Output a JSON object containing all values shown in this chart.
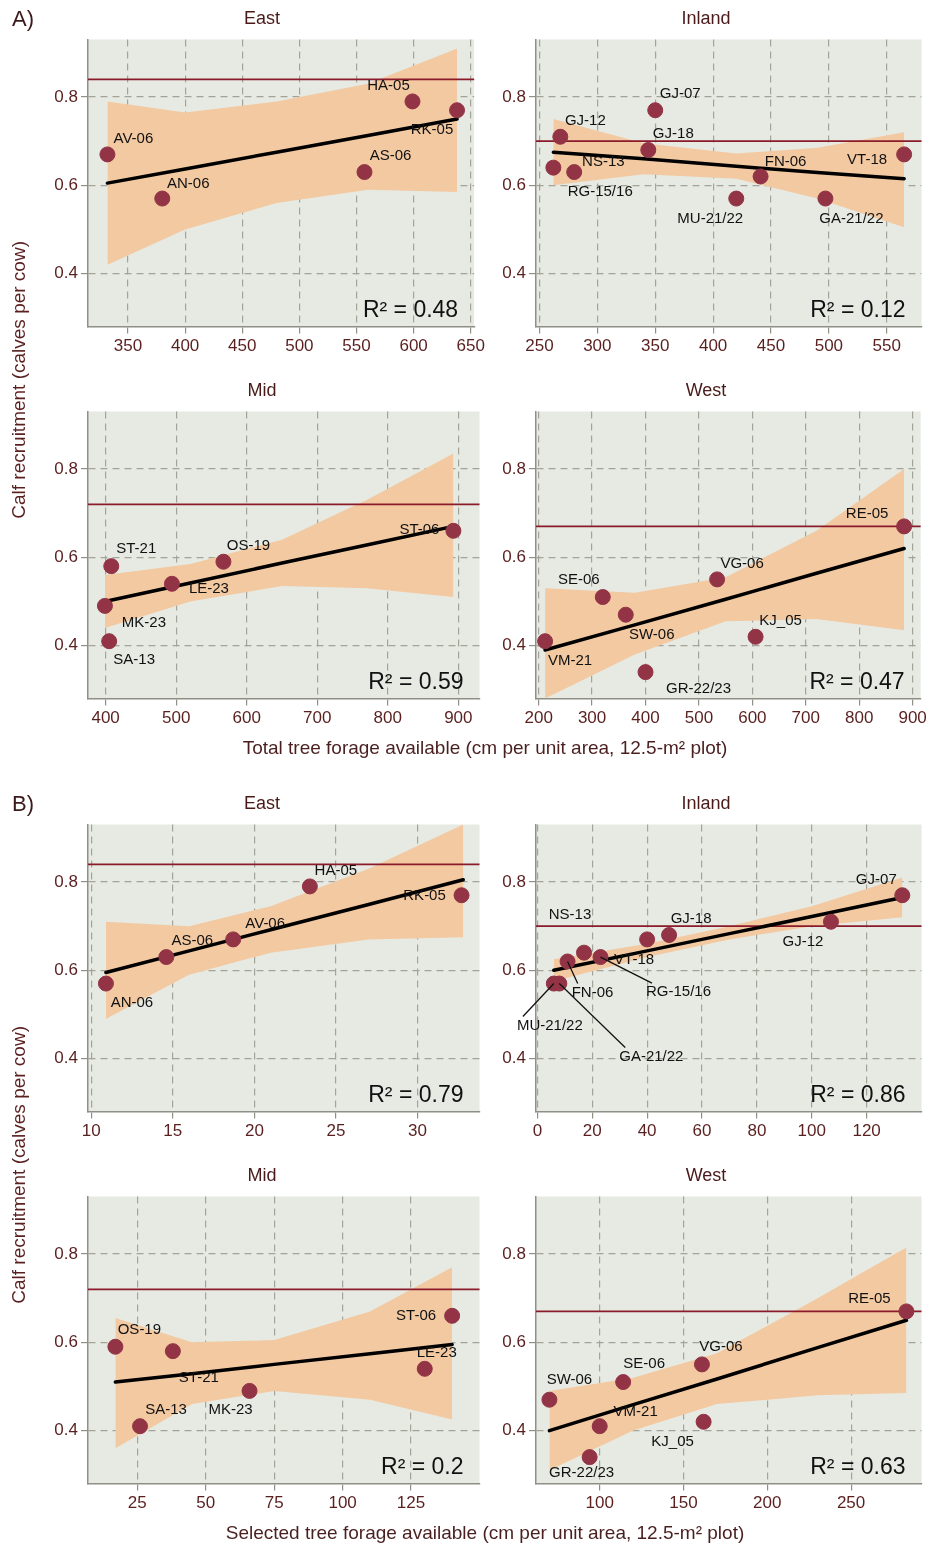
{
  "chart_data": [
    {
      "type": "scatter",
      "title": "East",
      "ylabel": "Calf recruitment (calves per cow)",
      "xlim": [
        315,
        653
      ],
      "xticks": [
        350,
        400,
        450,
        500,
        550,
        600,
        650
      ],
      "ylim": [
        0.28,
        0.93
      ],
      "yticks": [
        0.4,
        0.6,
        0.8
      ],
      "grid": true,
      "marker": "circle",
      "ref_lines": [
        {
          "axis": "y",
          "value": 0.84,
          "color": "#8b1a2b"
        }
      ],
      "series": [
        {
          "type": "scatter",
          "color": "#923446",
          "x": [
            332,
            380,
            557,
            599,
            638
          ],
          "values": [
            0.67,
            0.57,
            0.63,
            0.79,
            0.77
          ]
        },
        {
          "type": "line",
          "color": "#000000",
          "marker": "none",
          "x": [
            332,
            400,
            480,
            560,
            638
          ],
          "values": [
            0.605,
            0.637,
            0.675,
            0.713,
            0.75
          ],
          "lower": [
            0.42,
            0.5,
            0.56,
            0.59,
            0.585
          ],
          "upper": [
            0.79,
            0.765,
            0.79,
            0.83,
            0.91
          ]
        }
      ],
      "annotations": [
        "A)",
        "R² = 0.48",
        {
          "text": "AV-06",
          "x": 332,
          "y": 0.67
        },
        {
          "text": "AN-06",
          "x": 380,
          "y": 0.57
        },
        {
          "text": "AS-06",
          "x": 557,
          "y": 0.63
        },
        {
          "text": "HA-05",
          "x": 599,
          "y": 0.79
        },
        {
          "text": "RK-05",
          "x": 638,
          "y": 0.77
        }
      ]
    },
    {
      "type": "scatter",
      "title": "Inland",
      "xlim": [
        247,
        580
      ],
      "xticks": [
        250,
        300,
        350,
        400,
        450,
        500,
        550
      ],
      "ylim": [
        0.28,
        0.93
      ],
      "yticks": [
        0.4,
        0.6,
        0.8
      ],
      "grid": true,
      "marker": "circle",
      "ref_lines": [
        {
          "axis": "y",
          "value": 0.7,
          "color": "#8b1a2b"
        }
      ],
      "series": [
        {
          "type": "scatter",
          "color": "#923446",
          "x": [
            268,
            262,
            280,
            344,
            350,
            420,
            441,
            497,
            565
          ],
          "values": [
            0.71,
            0.64,
            0.63,
            0.68,
            0.77,
            0.57,
            0.62,
            0.57,
            0.67
          ]
        },
        {
          "type": "line",
          "color": "#000000",
          "marker": "none",
          "x": [
            262,
            340,
            420,
            490,
            565
          ],
          "values": [
            0.675,
            0.66,
            0.643,
            0.629,
            0.615
          ],
          "lower": [
            0.6,
            0.625,
            0.615,
            0.57,
            0.505
          ],
          "upper": [
            0.75,
            0.695,
            0.672,
            0.685,
            0.72
          ]
        }
      ],
      "annotations": [
        "R² = 0.12",
        {
          "text": "GJ-12",
          "x": 268,
          "y": 0.71
        },
        {
          "text": "NS-13",
          "x": 262,
          "y": 0.64
        },
        {
          "text": "RG-15/16",
          "x": 280,
          "y": 0.63
        },
        {
          "text": "GJ-18",
          "x": 344,
          "y": 0.68
        },
        {
          "text": "GJ-07",
          "x": 350,
          "y": 0.77
        },
        {
          "text": "MU-21/22",
          "x": 420,
          "y": 0.57
        },
        {
          "text": "FN-06",
          "x": 441,
          "y": 0.62
        },
        {
          "text": "GA-21/22",
          "x": 497,
          "y": 0.57
        },
        {
          "text": "VT-18",
          "x": 565,
          "y": 0.67
        }
      ]
    },
    {
      "type": "scatter",
      "title": "Mid",
      "xlabel": "Total tree forage available (cm per unit area, 12.5-m² plot)",
      "xlim": [
        375,
        930
      ],
      "xticks": [
        400,
        500,
        600,
        700,
        800,
        900
      ],
      "ylim": [
        0.28,
        0.93
      ],
      "yticks": [
        0.4,
        0.6,
        0.8
      ],
      "grid": true,
      "marker": "circle",
      "ref_lines": [
        {
          "axis": "y",
          "value": 0.72,
          "color": "#8b1a2b"
        }
      ],
      "series": [
        {
          "type": "scatter",
          "color": "#923446",
          "x": [
            399,
            405,
            408,
            494,
            567,
            893
          ],
          "values": [
            0.49,
            0.41,
            0.58,
            0.54,
            0.59,
            0.66
          ]
        },
        {
          "type": "line",
          "color": "#000000",
          "marker": "none",
          "x": [
            399,
            520,
            650,
            770,
            893
          ],
          "values": [
            0.5,
            0.542,
            0.587,
            0.628,
            0.67
          ],
          "lower": [
            0.44,
            0.5,
            0.535,
            0.53,
            0.51
          ],
          "upper": [
            0.56,
            0.585,
            0.64,
            0.73,
            0.835
          ]
        }
      ],
      "annotations": [
        "R² = 0.59",
        {
          "text": "MK-23",
          "x": 399,
          "y": 0.49
        },
        {
          "text": "SA-13",
          "x": 405,
          "y": 0.41
        },
        {
          "text": "ST-21",
          "x": 408,
          "y": 0.58
        },
        {
          "text": "LE-23",
          "x": 494,
          "y": 0.54
        },
        {
          "text": "OS-19",
          "x": 567,
          "y": 0.59
        },
        {
          "text": "ST-06",
          "x": 893,
          "y": 0.66
        }
      ]
    },
    {
      "type": "scatter",
      "title": "West",
      "xlim": [
        195,
        915
      ],
      "xticks": [
        200,
        300,
        400,
        500,
        600,
        700,
        800,
        900
      ],
      "ylim": [
        0.28,
        0.93
      ],
      "yticks": [
        0.4,
        0.6,
        0.8
      ],
      "grid": true,
      "marker": "circle",
      "ref_lines": [
        {
          "axis": "y",
          "value": 0.67,
          "color": "#8b1a2b"
        }
      ],
      "series": [
        {
          "type": "scatter",
          "color": "#923446",
          "x": [
            212,
            320,
            363,
            400,
            534,
            606,
            884
          ],
          "values": [
            0.41,
            0.51,
            0.47,
            0.34,
            0.55,
            0.42,
            0.67
          ]
        },
        {
          "type": "line",
          "color": "#000000",
          "marker": "none",
          "x": [
            212,
            380,
            550,
            720,
            884
          ],
          "values": [
            0.39,
            0.447,
            0.505,
            0.564,
            0.62
          ],
          "lower": [
            0.28,
            0.38,
            0.455,
            0.46,
            0.435
          ],
          "upper": [
            0.53,
            0.52,
            0.555,
            0.66,
            0.8
          ]
        }
      ],
      "annotations": [
        "R² = 0.47",
        {
          "text": "VM-21",
          "x": 212,
          "y": 0.41
        },
        {
          "text": "SE-06",
          "x": 320,
          "y": 0.51
        },
        {
          "text": "SW-06",
          "x": 363,
          "y": 0.47
        },
        {
          "text": "GR-22/23",
          "x": 400,
          "y": 0.34
        },
        {
          "text": "VG-06",
          "x": 534,
          "y": 0.55
        },
        {
          "text": "KJ_05",
          "x": 606,
          "y": 0.42
        },
        {
          "text": "RE-05",
          "x": 884,
          "y": 0.67
        }
      ]
    },
    {
      "type": "scatter",
      "title": "East",
      "ylabel": "Calf recruitment (calves per cow)",
      "xlim": [
        9.8,
        33.8
      ],
      "xticks": [
        10,
        15,
        20,
        25,
        30
      ],
      "ylim": [
        0.28,
        0.93
      ],
      "yticks": [
        0.4,
        0.6,
        0.8
      ],
      "grid": true,
      "marker": "circle",
      "ref_lines": [
        {
          "axis": "y",
          "value": 0.84,
          "color": "#8b1a2b"
        }
      ],
      "series": [
        {
          "type": "scatter",
          "color": "#923446",
          "x": [
            10.9,
            14.6,
            18.7,
            23.4,
            32.7
          ],
          "values": [
            0.57,
            0.63,
            0.67,
            0.79,
            0.77
          ]
        },
        {
          "type": "line",
          "color": "#000000",
          "marker": "none",
          "x": [
            10.9,
            16,
            21,
            27,
            32.8
          ],
          "values": [
            0.595,
            0.644,
            0.692,
            0.749,
            0.805
          ],
          "lower": [
            0.49,
            0.59,
            0.64,
            0.67,
            0.675
          ],
          "upper": [
            0.71,
            0.7,
            0.745,
            0.83,
            0.93
          ]
        }
      ],
      "annotations": [
        "B)",
        "R² = 0.79",
        {
          "text": "AN-06",
          "x": 10.9,
          "y": 0.57
        },
        {
          "text": "AS-06",
          "x": 14.6,
          "y": 0.63
        },
        {
          "text": "AV-06",
          "x": 18.7,
          "y": 0.67
        },
        {
          "text": "HA-05",
          "x": 23.4,
          "y": 0.79
        },
        {
          "text": "RK-05",
          "x": 32.7,
          "y": 0.77
        }
      ]
    },
    {
      "type": "scatter",
      "title": "Inland",
      "xlim": [
        -0.5,
        140
      ],
      "xticks": [
        0,
        20,
        40,
        60,
        80,
        100,
        120
      ],
      "ylim": [
        0.28,
        0.93
      ],
      "yticks": [
        0.4,
        0.6,
        0.8
      ],
      "grid": true,
      "marker": "circle",
      "ref_lines": [
        {
          "axis": "y",
          "value": 0.7,
          "color": "#8b1a2b"
        }
      ],
      "series": [
        {
          "type": "scatter",
          "color": "#923446",
          "x": [
            6,
            8,
            11,
            17,
            40,
            23,
            48,
            107,
            133
          ],
          "values": [
            0.57,
            0.57,
            0.62,
            0.64,
            0.67,
            0.63,
            0.68,
            0.71,
            0.77
          ]
        },
        {
          "type": "line",
          "color": "#000000",
          "marker": "none",
          "x": [
            6,
            40,
            70,
            100,
            133
          ],
          "values": [
            0.6,
            0.644,
            0.683,
            0.722,
            0.765
          ],
          "lower": [
            0.575,
            0.63,
            0.67,
            0.7,
            0.72
          ],
          "upper": [
            0.625,
            0.66,
            0.7,
            0.745,
            0.81
          ]
        }
      ],
      "annotations": [
        "R² = 0.86",
        {
          "text": "MU-21/22",
          "x": 6,
          "y": 0.57
        },
        {
          "text": "GA-21/22",
          "x": 8,
          "y": 0.57
        },
        {
          "text": "FN-06",
          "x": 11,
          "y": 0.62
        },
        {
          "text": "NS-13",
          "x": 17,
          "y": 0.64
        },
        {
          "text": "VT-18",
          "x": 40,
          "y": 0.67
        },
        {
          "text": "RG-15/16",
          "x": 23,
          "y": 0.63
        },
        {
          "text": "GJ-18",
          "x": 48,
          "y": 0.68
        },
        {
          "text": "GJ-12",
          "x": 107,
          "y": 0.71
        },
        {
          "text": "GJ-07",
          "x": 133,
          "y": 0.77
        }
      ]
    },
    {
      "type": "scatter",
      "title": "Mid",
      "xlabel": "Selected tree forage available (cm per unit area, 12.5-m² plot)",
      "xlim": [
        7,
        150
      ],
      "xticks": [
        25,
        50,
        75,
        100,
        125
      ],
      "ylim": [
        0.28,
        0.93
      ],
      "yticks": [
        0.4,
        0.6,
        0.8
      ],
      "grid": true,
      "marker": "circle",
      "ref_lines": [
        {
          "axis": "y",
          "value": 0.72,
          "color": "#8b1a2b"
        }
      ],
      "series": [
        {
          "type": "scatter",
          "color": "#923446",
          "x": [
            17,
            26,
            38,
            66,
            130,
            140
          ],
          "values": [
            0.59,
            0.41,
            0.58,
            0.49,
            0.54,
            0.66
          ]
        },
        {
          "type": "line",
          "color": "#000000",
          "marker": "none",
          "x": [
            17,
            45,
            75,
            110,
            140
          ],
          "values": [
            0.51,
            0.529,
            0.55,
            0.574,
            0.595
          ],
          "lower": [
            0.36,
            0.46,
            0.49,
            0.47,
            0.425
          ],
          "upper": [
            0.655,
            0.6,
            0.605,
            0.67,
            0.77
          ]
        }
      ],
      "annotations": [
        "R² = 0.2",
        {
          "text": "OS-19",
          "x": 17,
          "y": 0.59
        },
        {
          "text": "SA-13",
          "x": 26,
          "y": 0.41
        },
        {
          "text": "ST-21",
          "x": 38,
          "y": 0.58
        },
        {
          "text": "MK-23",
          "x": 66,
          "y": 0.49
        },
        {
          "text": "LE-23",
          "x": 130,
          "y": 0.54
        },
        {
          "text": "ST-06",
          "x": 140,
          "y": 0.66
        }
      ]
    },
    {
      "type": "scatter",
      "title": "West",
      "xlim": [
        62,
        292
      ],
      "xticks": [
        100,
        150,
        200,
        250
      ],
      "ylim": [
        0.28,
        0.93
      ],
      "yticks": [
        0.4,
        0.6,
        0.8
      ],
      "grid": true,
      "marker": "circle",
      "ref_lines": [
        {
          "axis": "y",
          "value": 0.67,
          "color": "#8b1a2b"
        }
      ],
      "series": [
        {
          "type": "scatter",
          "color": "#923446",
          "x": [
            70,
            94,
            100,
            114,
            161,
            162,
            283
          ],
          "values": [
            0.47,
            0.34,
            0.41,
            0.51,
            0.55,
            0.42,
            0.67
          ]
        },
        {
          "type": "line",
          "color": "#000000",
          "marker": "none",
          "x": [
            70,
            120,
            170,
            230,
            283
          ],
          "values": [
            0.4,
            0.459,
            0.517,
            0.588,
            0.65
          ],
          "lower": [
            0.31,
            0.4,
            0.46,
            0.48,
            0.485
          ],
          "upper": [
            0.49,
            0.52,
            0.575,
            0.7,
            0.815
          ]
        }
      ],
      "annotations": [
        "R² = 0.63",
        {
          "text": "SW-06",
          "x": 70,
          "y": 0.47
        },
        {
          "text": "GR-22/23",
          "x": 94,
          "y": 0.34
        },
        {
          "text": "VM-21",
          "x": 100,
          "y": 0.41
        },
        {
          "text": "SE-06",
          "x": 114,
          "y": 0.51
        },
        {
          "text": "VG-06",
          "x": 161,
          "y": 0.55
        },
        {
          "text": "KJ_05",
          "x": 162,
          "y": 0.42
        },
        {
          "text": "RE-05",
          "x": 283,
          "y": 0.67
        }
      ]
    }
  ]
}
